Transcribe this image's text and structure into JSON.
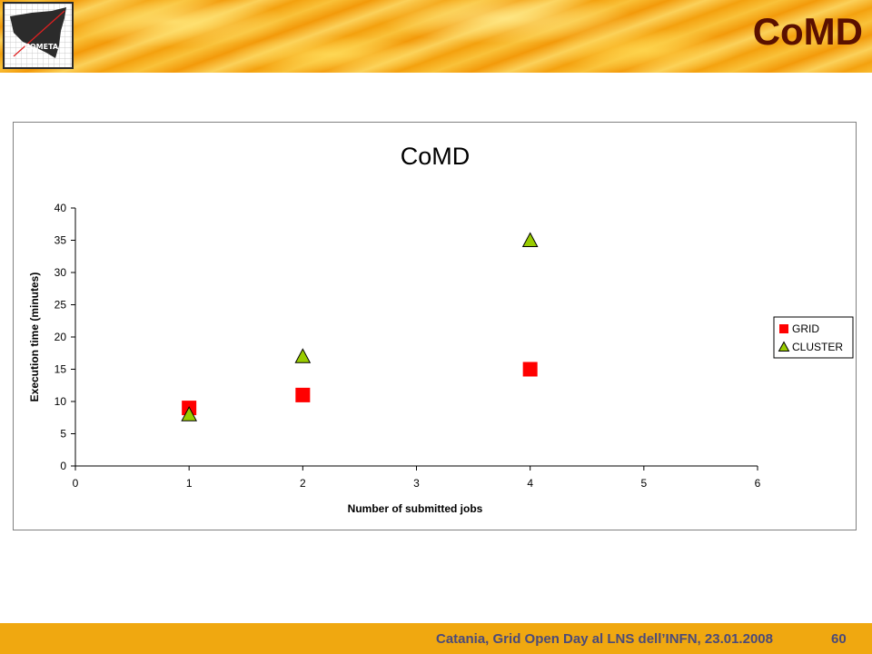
{
  "header": {
    "title": "CoMD",
    "logo_text": "COMETA"
  },
  "chart_data": {
    "type": "scatter",
    "title": "CoMD",
    "xlabel": "Number of submitted jobs",
    "ylabel": "Execution time (minutes)",
    "xlim": [
      0,
      6
    ],
    "ylim": [
      0,
      40
    ],
    "xticks": [
      0,
      1,
      2,
      3,
      4,
      5,
      6
    ],
    "yticks": [
      0,
      5,
      10,
      15,
      20,
      25,
      30,
      35,
      40
    ],
    "grid": false,
    "legend_position": "right",
    "series": [
      {
        "name": "GRID",
        "marker": "square",
        "color": "#ff0000",
        "points": [
          {
            "x": 1,
            "y": 9
          },
          {
            "x": 2,
            "y": 11
          },
          {
            "x": 4,
            "y": 15
          }
        ]
      },
      {
        "name": "CLUSTER",
        "marker": "triangle",
        "color": "#99cc00",
        "points": [
          {
            "x": 1,
            "y": 8
          },
          {
            "x": 2,
            "y": 17
          },
          {
            "x": 4,
            "y": 35
          }
        ]
      }
    ]
  },
  "footer": {
    "text": "Catania, Grid Open Day al LNS dell’INFN, 23.01.2008",
    "page": "60"
  }
}
